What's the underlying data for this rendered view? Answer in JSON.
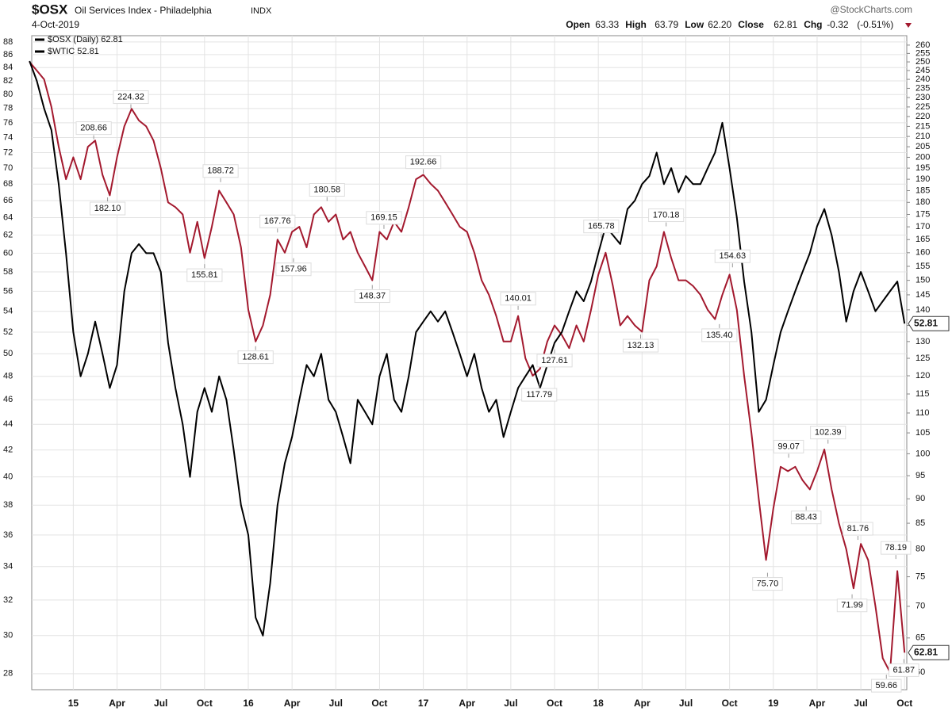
{
  "chart_data": {
    "type": "line",
    "symbol": "$OSX",
    "title": "Oil Services Index - Philadelphia",
    "exchange": "INDX",
    "date": "4-Oct-2019",
    "source": "@StockCharts.com",
    "quote": [
      {
        "label": "Open",
        "value": 63.33
      },
      {
        "label": "High",
        "value": 63.79
      },
      {
        "label": "Low",
        "value": 62.2,
        "value_label": "62.20"
      },
      {
        "label": "Close",
        "value": 62.81
      },
      {
        "label": "Chg",
        "value": -0.32,
        "note": "(-0.51%)"
      }
    ],
    "log_scale": true,
    "grid": true,
    "x": [
      0,
      1,
      2,
      3,
      4,
      5,
      6,
      7,
      8,
      9,
      10,
      11,
      12,
      13,
      14,
      15,
      16,
      17,
      18,
      19,
      20,
      21,
      22,
      23,
      24,
      25,
      26,
      27,
      28,
      29,
      30,
      31,
      32,
      33,
      34,
      35,
      36,
      37,
      38,
      39,
      40,
      41,
      42,
      43,
      44,
      45,
      46,
      47,
      48,
      49,
      50,
      51,
      52,
      53,
      54,
      55,
      56,
      57,
      58,
      59,
      60,
      61,
      62,
      63,
      64,
      65,
      66,
      67,
      68,
      69,
      70,
      71,
      72,
      73,
      74,
      75,
      76,
      77,
      78,
      79,
      80,
      81,
      82,
      83,
      84,
      85,
      86,
      87,
      88,
      89,
      90,
      91,
      92,
      93,
      94,
      95,
      96,
      97,
      98,
      99,
      100,
      101,
      102,
      103,
      104,
      105,
      106,
      107,
      108,
      109,
      110,
      111,
      112,
      113,
      114,
      115,
      116,
      117,
      118,
      119,
      120
    ],
    "xlim": [
      0.3,
      120.3
    ],
    "xticks": [
      {
        "value": 6,
        "label": "15"
      },
      {
        "value": 12,
        "label": "Apr"
      },
      {
        "value": 18,
        "label": "Jul"
      },
      {
        "value": 24,
        "label": "Oct"
      },
      {
        "value": 30,
        "label": "16"
      },
      {
        "value": 36,
        "label": "Apr"
      },
      {
        "value": 42,
        "label": "Jul"
      },
      {
        "value": 48,
        "label": "Oct"
      },
      {
        "value": 54,
        "label": "17"
      },
      {
        "value": 60,
        "label": "Apr"
      },
      {
        "value": 66,
        "label": "Jul"
      },
      {
        "value": 72,
        "label": "Oct"
      },
      {
        "value": 78,
        "label": "18"
      },
      {
        "value": 84,
        "label": "Apr"
      },
      {
        "value": 90,
        "label": "Jul"
      },
      {
        "value": 96,
        "label": "Oct"
      },
      {
        "value": 102,
        "label": "19"
      },
      {
        "value": 108,
        "label": "Apr"
      },
      {
        "value": 114,
        "label": "Jul"
      },
      {
        "value": 120,
        "label": "Oct"
      }
    ],
    "ylim": [
      27.2,
      89
    ],
    "yticks": [
      28,
      30,
      32,
      34,
      36,
      38,
      40,
      42,
      44,
      46,
      48,
      50,
      52,
      54,
      56,
      58,
      60,
      62,
      64,
      66,
      68,
      70,
      72,
      74,
      76,
      78,
      80,
      82,
      84,
      86,
      88
    ],
    "y2lim": [
      57.6,
      265.8
    ],
    "y2ticks": [
      60,
      65,
      70,
      75,
      80,
      85,
      90,
      95,
      100,
      105,
      110,
      115,
      120,
      125,
      130,
      135,
      140,
      145,
      150,
      155,
      160,
      165,
      170,
      175,
      180,
      185,
      190,
      195,
      200,
      205,
      210,
      215,
      220,
      225,
      230,
      235,
      240,
      245,
      250,
      255,
      260
    ],
    "series": [
      {
        "name": "$OSX (Daily) 62.81",
        "color": "#a3192e",
        "axis": "y2",
        "values": [
          250,
          245,
          240,
          225,
          205,
          190,
          200,
          190,
          205,
          208,
          192,
          183,
          200,
          215,
          224,
          218,
          215,
          208,
          195,
          180,
          178,
          175,
          160,
          172,
          158,
          170,
          185,
          180,
          175,
          162,
          140,
          130,
          135,
          145,
          165,
          160,
          168,
          170,
          162,
          175,
          178,
          172,
          175,
          165,
          168,
          160,
          155,
          150,
          168,
          165,
          172,
          168,
          178,
          190,
          192,
          188,
          185,
          180,
          175,
          170,
          168,
          160,
          150,
          145,
          138,
          130,
          130,
          138,
          125,
          120,
          122,
          130,
          135,
          132,
          128,
          135,
          130,
          140,
          152,
          160,
          148,
          135,
          138,
          135,
          133,
          150,
          155,
          168,
          158,
          150,
          150,
          148,
          145,
          140,
          137,
          145,
          152,
          140,
          120,
          105,
          90,
          78,
          88,
          97,
          96,
          97,
          94,
          92,
          96,
          101,
          92,
          85,
          80,
          73,
          81,
          78,
          70,
          62,
          60,
          76,
          62.81
        ]
      },
      {
        "name": "$WTIC 52.81",
        "color": "#000000",
        "axis": "y",
        "values": [
          85,
          82,
          78,
          75,
          68,
          60,
          52,
          48,
          50,
          53,
          50,
          47,
          49,
          56,
          60,
          61,
          60,
          60,
          58,
          51,
          47,
          44,
          40,
          45,
          47,
          45,
          48,
          46,
          42,
          38,
          36,
          31,
          30,
          33,
          38,
          41,
          43,
          46,
          49,
          48,
          50,
          46,
          45,
          43,
          41,
          46,
          45,
          44,
          48,
          50,
          46,
          45,
          48,
          52,
          53,
          54,
          53,
          54,
          52,
          50,
          48,
          50,
          47,
          45,
          46,
          43,
          45,
          47,
          48,
          49,
          47,
          49,
          51,
          52,
          54,
          56,
          55,
          57,
          60,
          63,
          62,
          61,
          65,
          66,
          68,
          69,
          72,
          68,
          70,
          67,
          69,
          68,
          68,
          70,
          72,
          76,
          70,
          64,
          57,
          52,
          45,
          46,
          49,
          52,
          54,
          56,
          58,
          60,
          63,
          65,
          62,
          58,
          53,
          56,
          58,
          56,
          54,
          55,
          56,
          57,
          52.81
        ]
      }
    ],
    "annotations": [
      {
        "x": 8.8,
        "y": 208.66
      },
      {
        "x": 10.7,
        "y": 182.1,
        "label": "182.10"
      },
      {
        "x": 13.9,
        "y": 224.32
      },
      {
        "x": 24,
        "y": 155.81
      },
      {
        "x": 26.2,
        "y": 188.72
      },
      {
        "x": 31,
        "y": 128.61
      },
      {
        "x": 34,
        "y": 167.76
      },
      {
        "x": 36.2,
        "y": 157.96
      },
      {
        "x": 40.8,
        "y": 180.58
      },
      {
        "x": 47,
        "y": 148.37
      },
      {
        "x": 48.6,
        "y": 169.15
      },
      {
        "x": 54,
        "y": 192.66
      },
      {
        "x": 67,
        "y": 140.01
      },
      {
        "x": 69.9,
        "y": 117.79
      },
      {
        "x": 72,
        "y": 127.61
      },
      {
        "x": 78.4,
        "y": 165.78
      },
      {
        "x": 83.8,
        "y": 132.13
      },
      {
        "x": 87.3,
        "y": 170.18
      },
      {
        "x": 94.6,
        "y": 135.4,
        "label": "135.40"
      },
      {
        "x": 96.4,
        "y": 154.63
      },
      {
        "x": 101.2,
        "y": 75.7,
        "label": "75.70"
      },
      {
        "x": 104.1,
        "y": 99.07
      },
      {
        "x": 106.5,
        "y": 88.43
      },
      {
        "x": 109.5,
        "y": 102.39
      },
      {
        "x": 113.6,
        "y": 81.76
      },
      {
        "x": 112.8,
        "y": 71.99
      },
      {
        "x": 118.8,
        "y": 78.19
      },
      {
        "x": 117.5,
        "y": 59.66
      },
      {
        "x": 119.9,
        "y": 61.87
      }
    ]
  }
}
